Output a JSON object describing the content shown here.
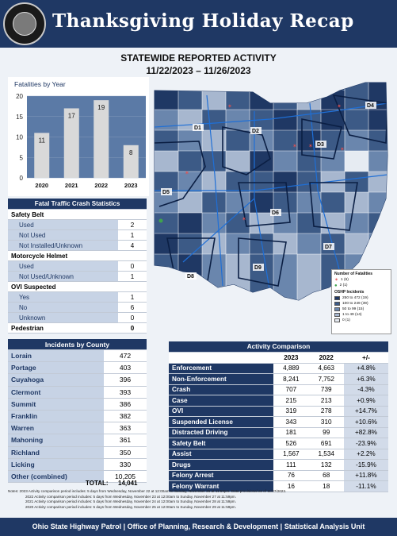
{
  "header": {
    "title": "Thanksgiving Holiday Recap",
    "seal_text": "SERVICE WITH A PURPOSE",
    "subtitle": "STATEWIDE REPORTED ACTIVITY",
    "date_range": "11/22/2023 – 11/26/2023"
  },
  "chart_data": {
    "type": "bar",
    "title": "Fatalities by Year",
    "categories": [
      "2020",
      "2021",
      "2022",
      "2023"
    ],
    "values": [
      11,
      17,
      19,
      8
    ],
    "ylim": [
      0,
      20
    ],
    "yticks": [
      "0",
      "5",
      "10",
      "15",
      "20"
    ],
    "bar_color": "#d9d9d9",
    "plot_bg": "#5b7aa6"
  },
  "fatal": {
    "title": "Fatal Traffic Crash Statistics",
    "safety_belt": {
      "label": "Safety Belt",
      "items": [
        {
          "label": "Used",
          "value": "2"
        },
        {
          "label": "Not Used",
          "value": "1"
        },
        {
          "label": "Not Installed/Unknown",
          "value": "4"
        }
      ]
    },
    "motorcycle": {
      "label": "Motorcycle Helmet",
      "items": [
        {
          "label": "Used",
          "value": "0"
        },
        {
          "label": "Not Used/Unknown",
          "value": "1"
        }
      ]
    },
    "ovi": {
      "label": "OVI Suspected",
      "items": [
        {
          "label": "Yes",
          "value": "1"
        },
        {
          "label": "No",
          "value": "6"
        },
        {
          "label": "Unknown",
          "value": "0"
        }
      ]
    },
    "pedestrian": {
      "label": "Pedestrian",
      "value": "0"
    }
  },
  "county": {
    "title": "Incidents by County",
    "rows": [
      {
        "name": "Lorain",
        "value": "472"
      },
      {
        "name": "Portage",
        "value": "403"
      },
      {
        "name": "Cuyahoga",
        "value": "396"
      },
      {
        "name": "Clermont",
        "value": "393"
      },
      {
        "name": "Summit",
        "value": "386"
      },
      {
        "name": "Franklin",
        "value": "382"
      },
      {
        "name": "Warren",
        "value": "363"
      },
      {
        "name": "Mahoning",
        "value": "361"
      },
      {
        "name": "Richland",
        "value": "350"
      },
      {
        "name": "Licking",
        "value": "330"
      },
      {
        "name": "Other (combined)",
        "value": "10,205"
      }
    ],
    "total_label": "TOTAL:",
    "total_value": "14,041"
  },
  "activity": {
    "title": "Activity Comparison",
    "col_2023": "2023",
    "col_2022": "2022",
    "col_change": "+/-",
    "rows": [
      {
        "label": "Enforcement",
        "v2023": "4,889",
        "v2022": "4,663",
        "change": "+4.8%"
      },
      {
        "label": "Non-Enforcement",
        "v2023": "8,241",
        "v2022": "7,752",
        "change": "+6.3%"
      },
      {
        "label": "Crash",
        "v2023": "707",
        "v2022": "739",
        "change": "-4.3%"
      },
      {
        "label": "Case",
        "v2023": "215",
        "v2022": "213",
        "change": "+0.9%"
      },
      {
        "label": "OVI",
        "v2023": "319",
        "v2022": "278",
        "change": "+14.7%"
      },
      {
        "label": "Suspended License",
        "v2023": "343",
        "v2022": "310",
        "change": "+10.6%"
      },
      {
        "label": "Distracted Driving",
        "v2023": "181",
        "v2022": "99",
        "change": "+82.8%"
      },
      {
        "label": "Safety Belt",
        "v2023": "526",
        "v2022": "691",
        "change": "-23.9%"
      },
      {
        "label": "Assist",
        "v2023": "1,567",
        "v2022": "1,534",
        "change": "+2.2%"
      },
      {
        "label": "Drugs",
        "v2023": "111",
        "v2022": "132",
        "change": "-15.9%"
      },
      {
        "label": "Felony Arrest",
        "v2023": "76",
        "v2022": "68",
        "change": "+11.8%"
      },
      {
        "label": "Felony Warrant",
        "v2023": "16",
        "v2022": "18",
        "change": "-11.1%"
      }
    ]
  },
  "map": {
    "districts": [
      "D1",
      "D2",
      "D3",
      "D4",
      "D5",
      "D6",
      "D7",
      "D8",
      "D9"
    ],
    "legend_title": "Number of Fatalities",
    "legend_fatal": [
      {
        "label": "1  (6)",
        "color": "#e05050"
      },
      {
        "label": "2  (1)",
        "color": "#3fa34d"
      }
    ],
    "legend_osp_title": "OSHP Incidents",
    "legend_bins": [
      {
        "label": "250  to  472  (19)",
        "color": "#1f3864"
      },
      {
        "label": "100  to  249  (39)",
        "color": "#3c5a86"
      },
      {
        "label": "50  to  99  (15)",
        "color": "#6a86ad"
      },
      {
        "label": "1  to  49  (14)",
        "color": "#a7b7cf"
      },
      {
        "label": "0  (1)",
        "color": "#e6ebf2"
      }
    ]
  },
  "notes": [
    "Notes: 2023 Activity comparison period includes: 5 days from Wednesday, November 22 at 12:00am to Sunday, November 26 at 11:59pm. Data provisional as of 11/27/2023.",
    "2022 Activity comparison period includes: 5 days from Wednesday, November 23 at 12:00am to Sunday, November 27 at 11:59pm.",
    "2021 Activity comparison period includes: 5 days from Wednesday, November 24 at 12:00am to Sunday, November 28 at 11:59pm.",
    "2020 Activity comparison period includes: 5 days from Wednesday, November 25 at 12:00am to Sunday, November 29 at 11:59pm."
  ],
  "footer": {
    "text": "Ohio State Highway Patrol  |  Office of Planning, Research & Development  |  Statistical Analysis Unit"
  }
}
